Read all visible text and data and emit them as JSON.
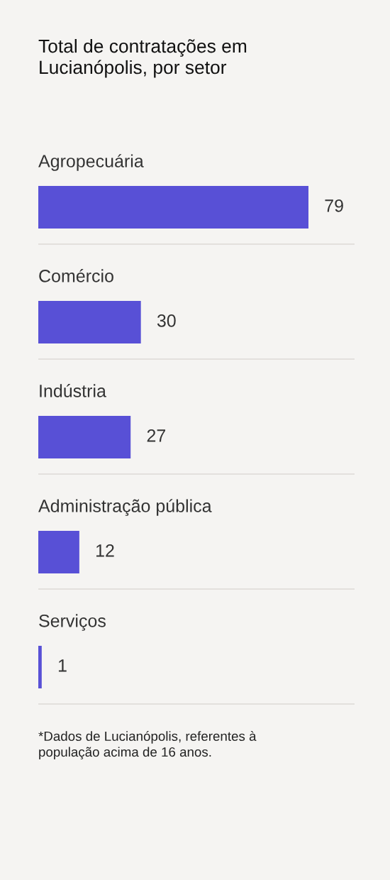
{
  "chart_data": {
    "type": "bar",
    "orientation": "horizontal",
    "title": "Total de contratações em\nLucianópolis, por setor",
    "categories": [
      "Agropecuária",
      "Comércio",
      "Indústria",
      "Administração pública",
      "Serviços"
    ],
    "values": [
      79,
      30,
      27,
      12,
      1
    ],
    "color": "#5850d6",
    "data_labels": true,
    "tick_labels": false,
    "annotations": [
      "*Dados de Lucianópolis, referentes à\npopulação acima de 16 anos."
    ]
  }
}
